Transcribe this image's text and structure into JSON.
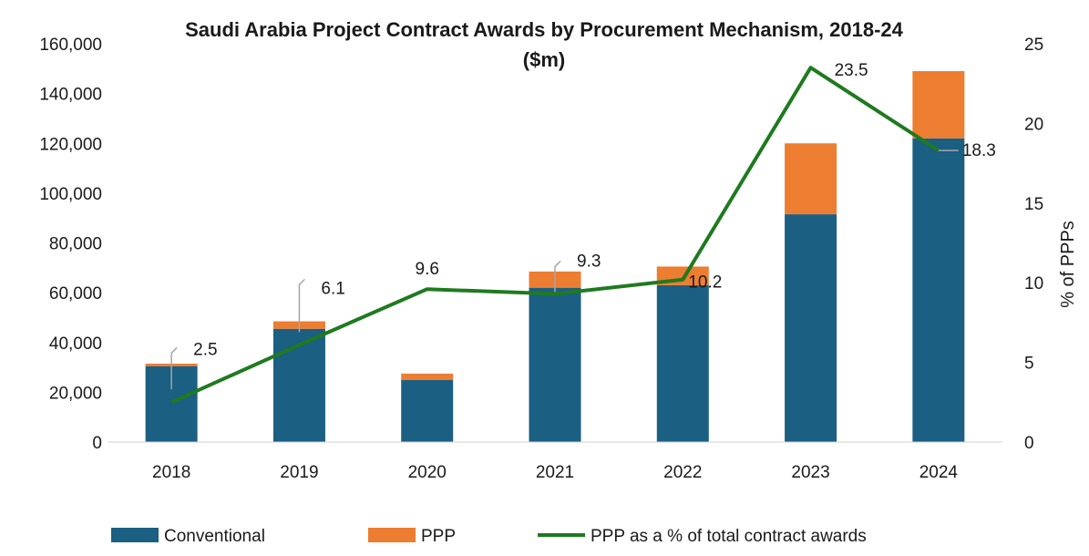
{
  "chart_data": {
    "type": "bar",
    "title_line1": "Saudi Arabia Project Contract Awards by Procurement Mechanism, 2018-24",
    "title_line2": "($m)",
    "categories": [
      "2018",
      "2019",
      "2020",
      "2021",
      "2022",
      "2023",
      "2024"
    ],
    "series": [
      {
        "name": "Conventional",
        "kind": "stacked-bar",
        "axis": "left",
        "color": "#1b5f82",
        "values": [
          30500,
          45500,
          25000,
          62000,
          63000,
          91500,
          122000
        ]
      },
      {
        "name": "PPP",
        "kind": "stacked-bar",
        "axis": "left",
        "color": "#ed7d31",
        "values": [
          1000,
          3000,
          2500,
          6500,
          7500,
          28500,
          27000
        ]
      },
      {
        "name": "PPP as a % of total contract awards",
        "kind": "line",
        "axis": "right",
        "color": "#1f7a1f",
        "values": [
          2.5,
          6.1,
          9.6,
          9.3,
          10.2,
          23.5,
          18.3
        ]
      }
    ],
    "line_labels": [
      "2.5",
      "6.1",
      "9.6",
      "9.3",
      "10.2",
      "23.5",
      "18.3"
    ],
    "left_axis": {
      "ylim": [
        0,
        160000
      ],
      "ticks": [
        "0",
        "20,000",
        "40,000",
        "60,000",
        "80,000",
        "100,000",
        "120,000",
        "140,000",
        "160,000"
      ]
    },
    "right_axis": {
      "ylim": [
        0,
        25
      ],
      "ticks": [
        "0",
        "5",
        "10",
        "15",
        "20",
        "25"
      ],
      "label": "% of PPPs"
    },
    "grid": false,
    "legend_position": "bottom"
  }
}
